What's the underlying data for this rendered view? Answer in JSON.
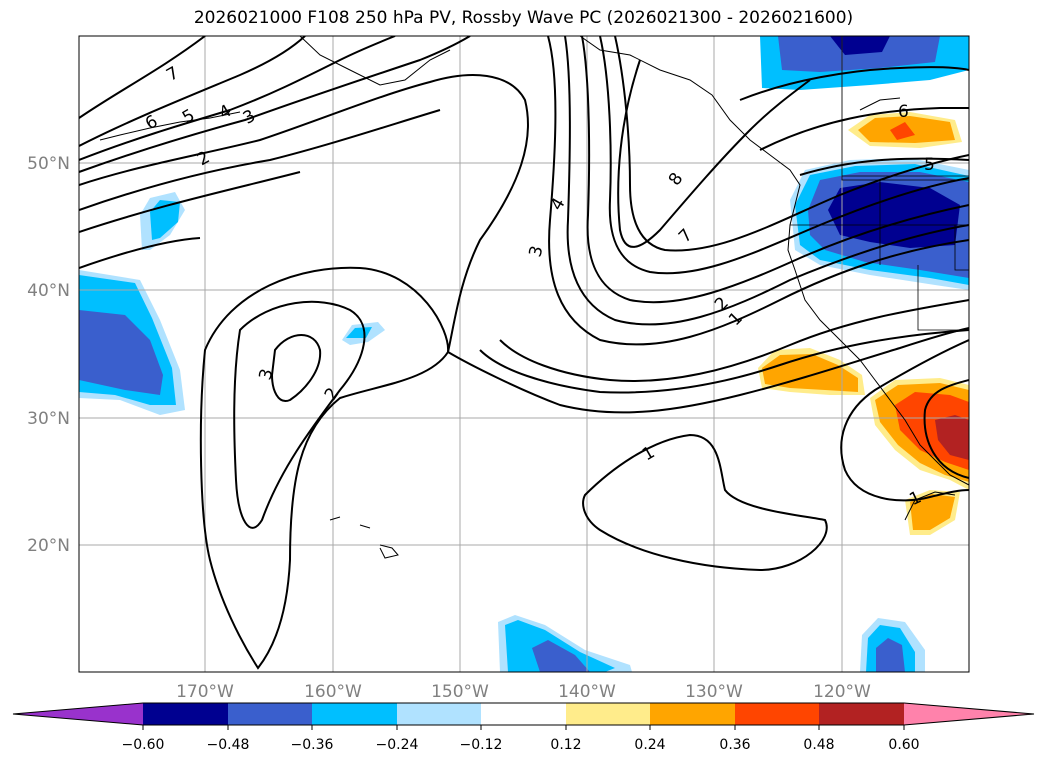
{
  "title": "2026021000 F108 250 hPa PV, Rossby Wave PC (2026021300 - 2026021600)",
  "map": {
    "lat_labels": [
      "50°N",
      "40°N",
      "30°N",
      "20°N"
    ],
    "lon_labels": [
      "170°W",
      "160°W",
      "150°W",
      "140°W",
      "130°W",
      "120°W"
    ],
    "contour_labels": [
      "7",
      "6",
      "5",
      "4",
      "3",
      "2",
      "8",
      "4",
      "3",
      "7",
      "2",
      "1",
      "6",
      "5",
      "3",
      "2",
      "1",
      "1"
    ],
    "colors": {
      "deep_negative": "#000090",
      "negative": "#3a5fcd",
      "weak_negative": "#00bfff",
      "faint_negative": "#b0e2ff",
      "faint_positive": "#ffec8b",
      "positive": "#ffa500",
      "strong_positive": "#ff4500",
      "very_strong_positive": "#b22222",
      "extreme_positive": "#ff82ab",
      "extreme_negative": "#9932cc"
    }
  },
  "colorbar": {
    "tick_labels": [
      "−0.60",
      "−0.48",
      "−0.36",
      "−0.24",
      "−0.12",
      "0.12",
      "0.24",
      "0.36",
      "0.48",
      "0.60"
    ],
    "colors": [
      "#9932cc",
      "#000090",
      "#3a5fcd",
      "#00bfff",
      "#b0e2ff",
      "#ffffff",
      "#ffec8b",
      "#ffa500",
      "#ff4500",
      "#b22222",
      "#ff82ab"
    ]
  }
}
